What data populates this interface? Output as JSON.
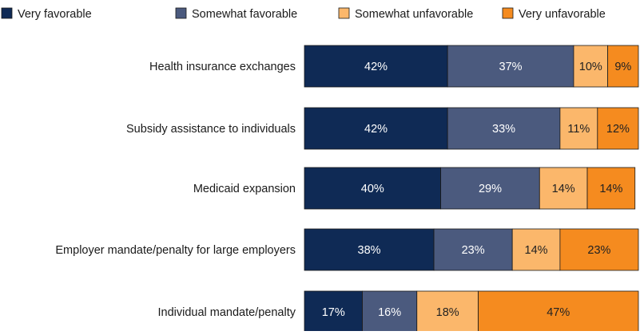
{
  "chart_data": {
    "type": "bar",
    "orientation": "horizontal",
    "stacked": true,
    "legend_position": "top",
    "categories": [
      "Health insurance exchanges",
      "Subsidy assistance to individuals",
      "Medicaid expansion",
      "Employer mandate/penalty for large employers",
      "Individual mandate/penalty"
    ],
    "series": [
      {
        "name": "Very favorable",
        "color": "#0f2a55",
        "text_color": "#ffffff",
        "values": [
          42,
          42,
          40,
          38,
          17
        ],
        "labels": [
          "42%",
          "42%",
          "40%",
          "38%",
          "17%"
        ]
      },
      {
        "name": "Somewhat favorable",
        "color": "#4b5a7e",
        "text_color": "#ffffff",
        "values": [
          37,
          33,
          29,
          23,
          16
        ],
        "labels": [
          "37%",
          "33%",
          "29%",
          "23%",
          "16%"
        ]
      },
      {
        "name": "Somewhat unfavorable",
        "color": "#fbb76b",
        "text_color": "#222222",
        "values": [
          10,
          11,
          14,
          14,
          18
        ],
        "labels": [
          "10%",
          "11%",
          "14%",
          "14%",
          "18%"
        ]
      },
      {
        "name": "Very unfavorable",
        "color": "#f58b1f",
        "text_color": "#222222",
        "values": [
          9,
          12,
          14,
          23,
          47
        ],
        "labels": [
          "9%",
          "12%",
          "14%",
          "23%",
          "47%"
        ]
      }
    ],
    "xlim": [
      0,
      98
    ],
    "grid": false
  }
}
